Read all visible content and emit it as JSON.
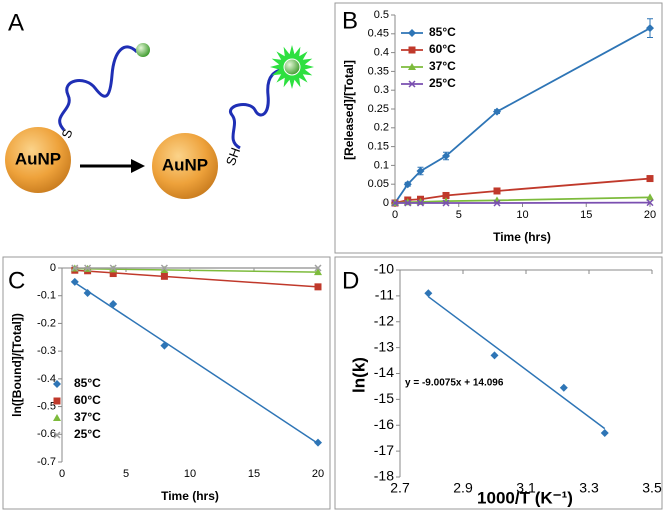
{
  "diagram": {
    "panel_label": "A",
    "nodes": [
      {
        "label": "AuNP"
      },
      {
        "label": "AuNP"
      }
    ],
    "linkers": [
      {
        "label": "S"
      },
      {
        "label": "SH"
      }
    ]
  },
  "chart_data": [
    {
      "type": "line",
      "panel_label": "B",
      "x_label": "Time (hrs)",
      "y_label": "[Released]/[Total]",
      "x": [
        0,
        1,
        2,
        4,
        8,
        20
      ],
      "series": [
        {
          "name": "85°C",
          "color": "#2e75b6",
          "marker": "diamond",
          "values": [
            0,
            0.05,
            0.085,
            0.125,
            0.243,
            0.465
          ],
          "errors": [
            0,
            0.005,
            0.01,
            0.01,
            0.005,
            0.025
          ]
        },
        {
          "name": "60°C",
          "color": "#c0392b",
          "marker": "square",
          "values": [
            0,
            0.008,
            0.01,
            0.02,
            0.032,
            0.065
          ]
        },
        {
          "name": "37°C",
          "color": "#7dbb3c",
          "marker": "triangle",
          "values": [
            0,
            0.002,
            0.003,
            0.005,
            0.007,
            0.015
          ]
        },
        {
          "name": "25°C",
          "color": "#7a4fb0",
          "marker": "x",
          "values": [
            0,
            0,
            0,
            0,
            0,
            0.001
          ]
        }
      ],
      "xlim": [
        0,
        20
      ],
      "xticks": [
        0,
        5,
        10,
        15,
        20
      ],
      "ylim": [
        0,
        0.5
      ],
      "yticks": [
        0,
        0.05,
        0.1,
        0.15,
        0.2,
        0.25,
        0.3,
        0.35,
        0.4,
        0.45,
        0.5
      ],
      "grid": false,
      "legend": "upper left"
    },
    {
      "type": "scatter",
      "panel_label": "C",
      "x_label": "Time (hrs)",
      "y_label": "ln([Bound]/[Total])",
      "x": [
        1,
        2,
        4,
        8,
        20
      ],
      "series": [
        {
          "name": "85°C",
          "color": "#2e75b6",
          "marker": "diamond",
          "values": [
            -0.05,
            -0.09,
            -0.13,
            -0.28,
            -0.63
          ]
        },
        {
          "name": "60°C",
          "color": "#c0392b",
          "marker": "square",
          "values": [
            -0.008,
            -0.01,
            -0.02,
            -0.03,
            -0.068
          ]
        },
        {
          "name": "37°C",
          "color": "#7dbb3c",
          "marker": "triangle",
          "values": [
            -0.002,
            -0.003,
            -0.005,
            -0.007,
            -0.015
          ]
        },
        {
          "name": "25°C",
          "color": "#a0a0a0",
          "marker": "x",
          "values": [
            0,
            0,
            0,
            0,
            0
          ]
        }
      ],
      "xlim": [
        0,
        20
      ],
      "xticks": [
        0,
        5,
        10,
        15,
        20
      ],
      "ylim": [
        -0.7,
        0
      ],
      "yticks": [
        0,
        -0.1,
        -0.2,
        -0.3,
        -0.4,
        -0.5,
        -0.6,
        -0.7
      ],
      "grid": false,
      "trendline": true,
      "legend": "lower left"
    },
    {
      "type": "scatter",
      "panel_label": "D",
      "x_label": "1000/T (K⁻¹)",
      "y_label": "ln(k)",
      "x": [
        2.79,
        3.0,
        3.22,
        3.35
      ],
      "values": [
        -10.9,
        -13.3,
        -14.55,
        -16.3
      ],
      "color": "#2e75b6",
      "marker": "diamond",
      "annotation": "y = -9.0075x + 14.096",
      "xlim": [
        2.7,
        3.5
      ],
      "xticks": [
        2.7,
        2.9,
        3.1,
        3.3,
        3.5
      ],
      "ylim": [
        -18,
        -10
      ],
      "yticks": [
        -10,
        -11,
        -12,
        -13,
        -14,
        -15,
        -16,
        -17,
        -18
      ],
      "grid": false,
      "trendline": true
    }
  ]
}
